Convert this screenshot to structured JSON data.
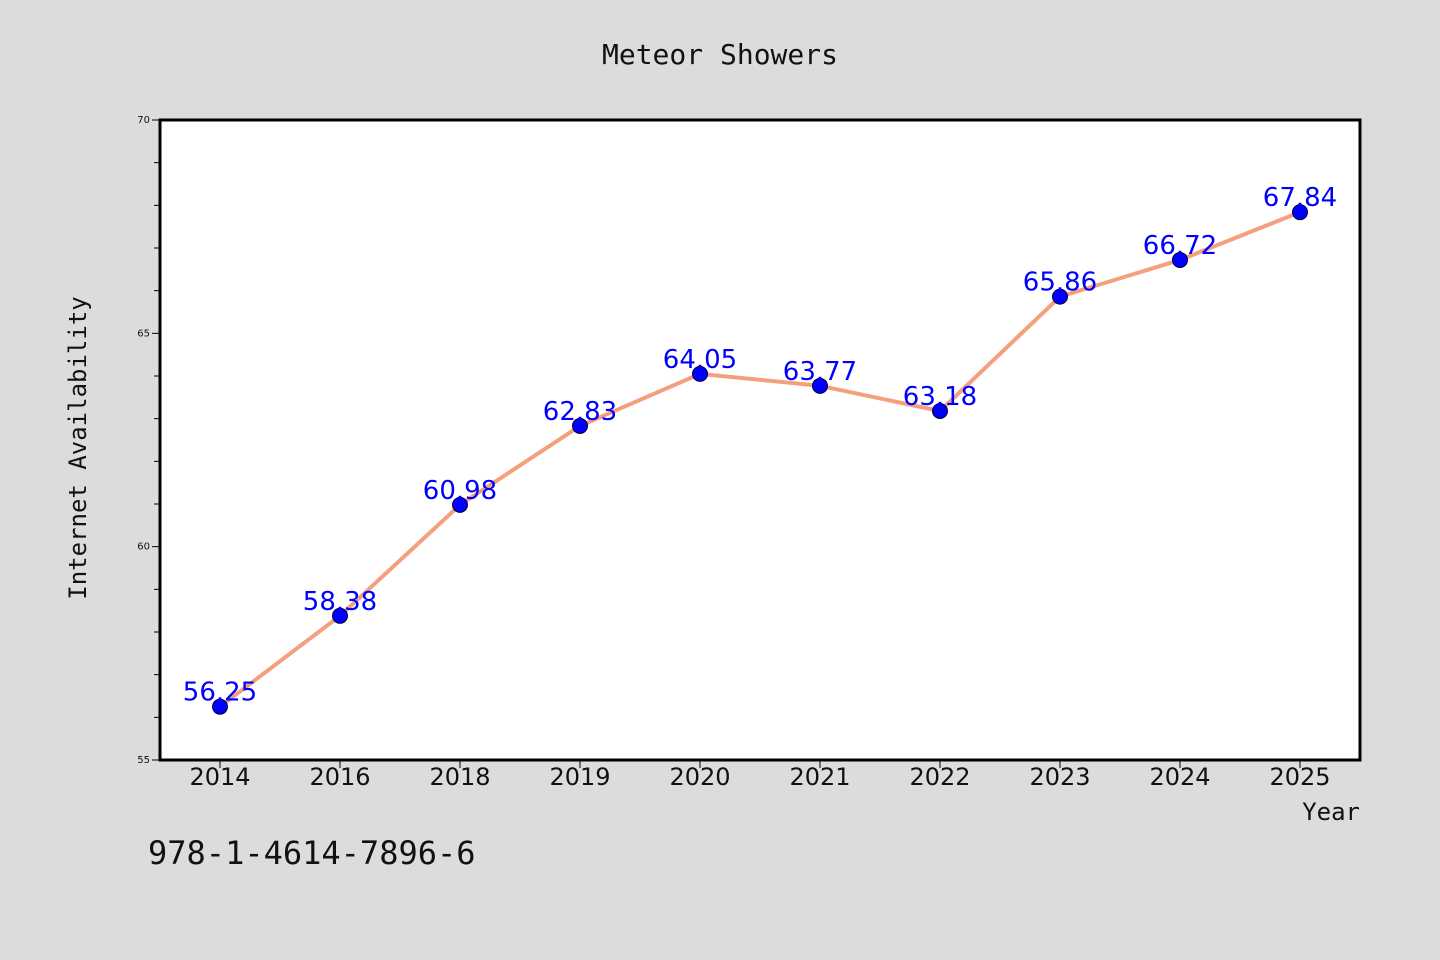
{
  "footer_code": "978-1-4614-7896-6",
  "colors": {
    "background": "#dcdcdc",
    "plot_background": "#ffffff",
    "line": "#f4a07f",
    "marker": "#0000ff",
    "data_label": "#0000ff",
    "axis": "#000000"
  },
  "chart_data": {
    "type": "line",
    "title": "Meteor Showers",
    "xlabel": "Year",
    "ylabel": "Internet Availability",
    "categories": [
      "2014",
      "2016",
      "2018",
      "2019",
      "2020",
      "2021",
      "2022",
      "2023",
      "2024",
      "2025"
    ],
    "series": [
      {
        "values": [
          56.25,
          58.38,
          60.98,
          62.83,
          64.05,
          63.77,
          63.18,
          65.86,
          66.72,
          67.84
        ],
        "marker": "circle",
        "data_labels": [
          "56.25",
          "58.38",
          "60.98",
          "62.83",
          "64.05",
          "63.77",
          "63.18",
          "65.86",
          "66.72",
          "67.84"
        ]
      }
    ],
    "ylim": [
      55,
      70
    ],
    "yticks": [
      55,
      60,
      65,
      70
    ],
    "ytick_labels": [
      "55",
      "60",
      "65",
      "70"
    ],
    "grid": false,
    "legend": "none"
  }
}
